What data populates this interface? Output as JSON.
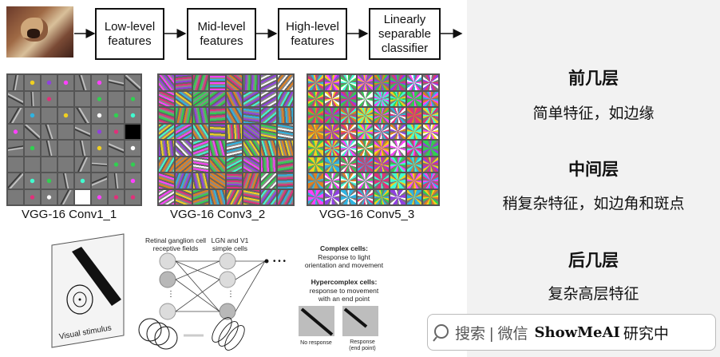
{
  "pipeline": {
    "boxes": [
      "Low-level\nfeatures",
      "Mid-level\nfeatures",
      "High-level\nfeatures",
      "Linearly\nseparable\nclassifier"
    ]
  },
  "grids": {
    "labels": [
      "VGG-16 Conv1_1",
      "VGG-16 Conv3_2",
      "VGG-16 Conv5_3"
    ]
  },
  "bottom_diagram": {
    "retinal_label": "Retinal ganglion cell\nreceptive fields",
    "lgn_label": "LGN and V1\nsimple cells",
    "visual_stimulus": "Visual stimulus",
    "complex_title": "Complex cells:",
    "complex_desc": "Response to light\norientation and movement",
    "hyper_title": "Hypercomplex cells:",
    "hyper_desc": "response to movement\nwith an end point",
    "no_response": "No response",
    "response_end": "Response\n(end point)"
  },
  "right_panel": {
    "early_title": "前几层",
    "early_desc": "简单特征，如边缘",
    "middle_title": "中间层",
    "middle_desc": "稍复杂特征，如边角和斑点",
    "late_title": "后几层",
    "late_desc": "复杂高层特征"
  },
  "watermark": {
    "search_text": "搜索 | 微信",
    "brand": "ShowMeAI",
    "suffix": "研究中"
  }
}
